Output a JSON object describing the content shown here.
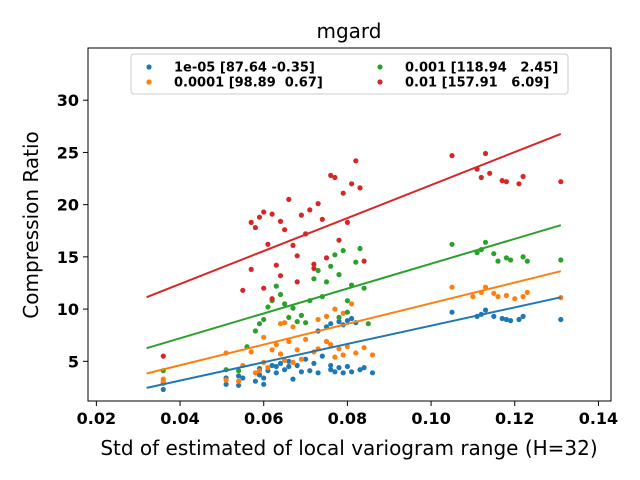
{
  "chart_data": {
    "type": "scatter",
    "title": "mgard",
    "xlabel": "Std of estimated of local variogram range (H=32)",
    "ylabel": "Compression Ratio",
    "xlim": [
      0.018,
      0.143
    ],
    "ylim": [
      1.2,
      35.0
    ],
    "xticks": [
      0.02,
      0.04,
      0.06,
      0.08,
      0.1,
      0.12,
      0.14
    ],
    "xtick_labels": [
      "0.02",
      "0.04",
      "0.06",
      "0.08",
      "0.10",
      "0.12",
      "0.14"
    ],
    "yticks": [
      5,
      10,
      15,
      20,
      25,
      30
    ],
    "ytick_labels": [
      "5",
      "10",
      "15",
      "20",
      "25",
      "30"
    ],
    "grid": false,
    "legend_position": "top-center",
    "legend_columns": 2,
    "fit_x_range": [
      0.032,
      0.131
    ],
    "series": [
      {
        "name": "1e-05 [87.64 -0.35]",
        "color": "#1f77b4",
        "fit": {
          "slope": 87.64,
          "intercept": -0.35
        },
        "points": [
          [
            0.036,
            2.3
          ],
          [
            0.036,
            2.9
          ],
          [
            0.051,
            2.8
          ],
          [
            0.051,
            3.4
          ],
          [
            0.054,
            2.7
          ],
          [
            0.054,
            3.6
          ],
          [
            0.055,
            3.4
          ],
          [
            0.058,
            3.1
          ],
          [
            0.059,
            3.7
          ],
          [
            0.059,
            4.3
          ],
          [
            0.06,
            2.8
          ],
          [
            0.06,
            3.4
          ],
          [
            0.061,
            4.1
          ],
          [
            0.062,
            4.6
          ],
          [
            0.063,
            3.9
          ],
          [
            0.063,
            4.5
          ],
          [
            0.064,
            4.8
          ],
          [
            0.065,
            4.2
          ],
          [
            0.066,
            4.5
          ],
          [
            0.066,
            5.0
          ],
          [
            0.067,
            3.3
          ],
          [
            0.068,
            4.6
          ],
          [
            0.069,
            4.0
          ],
          [
            0.07,
            5.2
          ],
          [
            0.071,
            4.1
          ],
          [
            0.072,
            4.8
          ],
          [
            0.073,
            3.9
          ],
          [
            0.074,
            5.5
          ],
          [
            0.076,
            4.2
          ],
          [
            0.076,
            4.6
          ],
          [
            0.077,
            4.0
          ],
          [
            0.078,
            4.4
          ],
          [
            0.079,
            3.9
          ],
          [
            0.08,
            4.5
          ],
          [
            0.081,
            4.0
          ],
          [
            0.083,
            4.2
          ],
          [
            0.084,
            4.4
          ],
          [
            0.086,
            3.9
          ],
          [
            0.105,
            9.7
          ],
          [
            0.111,
            9.3
          ],
          [
            0.112,
            9.5
          ],
          [
            0.113,
            9.9
          ],
          [
            0.115,
            9.3
          ],
          [
            0.117,
            9.1
          ],
          [
            0.118,
            9.0
          ],
          [
            0.119,
            8.9
          ],
          [
            0.121,
            9.0
          ],
          [
            0.122,
            9.3
          ],
          [
            0.131,
            9.0
          ],
          [
            0.073,
            7.9
          ],
          [
            0.075,
            8.3
          ],
          [
            0.076,
            8.6
          ],
          [
            0.078,
            8.8
          ],
          [
            0.079,
            8.5
          ],
          [
            0.08,
            8.9
          ],
          [
            0.081,
            9.1
          ],
          [
            0.082,
            8.7
          ]
        ]
      },
      {
        "name": "0.0001 [98.89  0.67]",
        "color": "#ff7f0e",
        "fit": {
          "slope": 98.89,
          "intercept": 0.67
        },
        "points": [
          [
            0.036,
            3.1
          ],
          [
            0.036,
            3.3
          ],
          [
            0.051,
            3.2
          ],
          [
            0.051,
            5.8
          ],
          [
            0.054,
            3.1
          ],
          [
            0.055,
            4.6
          ],
          [
            0.057,
            5.9
          ],
          [
            0.058,
            3.9
          ],
          [
            0.059,
            4.1
          ],
          [
            0.06,
            4.9
          ],
          [
            0.061,
            4.4
          ],
          [
            0.062,
            6.1
          ],
          [
            0.063,
            6.6
          ],
          [
            0.064,
            5.7
          ],
          [
            0.065,
            5.1
          ],
          [
            0.066,
            6.9
          ],
          [
            0.067,
            4.9
          ],
          [
            0.068,
            6.1
          ],
          [
            0.069,
            5.2
          ],
          [
            0.07,
            7.1
          ],
          [
            0.072,
            5.9
          ],
          [
            0.073,
            6.2
          ],
          [
            0.075,
            6.9
          ],
          [
            0.076,
            6.6
          ],
          [
            0.077,
            5.4
          ],
          [
            0.078,
            6.2
          ],
          [
            0.079,
            5.6
          ],
          [
            0.08,
            6.4
          ],
          [
            0.082,
            5.8
          ],
          [
            0.084,
            6.3
          ],
          [
            0.086,
            5.6
          ],
          [
            0.06,
            7.3
          ],
          [
            0.064,
            8.6
          ],
          [
            0.065,
            8.7
          ],
          [
            0.067,
            8.3
          ],
          [
            0.073,
            9.0
          ],
          [
            0.075,
            9.3
          ],
          [
            0.077,
            10.0
          ],
          [
            0.079,
            9.6
          ],
          [
            0.081,
            10.5
          ],
          [
            0.105,
            12.1
          ],
          [
            0.11,
            11.2
          ],
          [
            0.112,
            11.6
          ],
          [
            0.113,
            12.1
          ],
          [
            0.115,
            11.5
          ],
          [
            0.116,
            11.2
          ],
          [
            0.118,
            11.3
          ],
          [
            0.12,
            11.0
          ],
          [
            0.122,
            11.2
          ],
          [
            0.123,
            11.6
          ],
          [
            0.131,
            11.1
          ]
        ]
      },
      {
        "name": "0.001 [118.94   2.45]",
        "color": "#2ca02c",
        "fit": {
          "slope": 118.94,
          "intercept": 2.45
        },
        "points": [
          [
            0.036,
            4.1
          ],
          [
            0.051,
            4.2
          ],
          [
            0.054,
            4.1
          ],
          [
            0.056,
            6.4
          ],
          [
            0.058,
            7.9
          ],
          [
            0.059,
            8.6
          ],
          [
            0.06,
            9.0
          ],
          [
            0.061,
            10.2
          ],
          [
            0.062,
            10.8
          ],
          [
            0.063,
            12.2
          ],
          [
            0.064,
            11.4
          ],
          [
            0.065,
            10.5
          ],
          [
            0.066,
            9.2
          ],
          [
            0.067,
            10.1
          ],
          [
            0.068,
            8.8
          ],
          [
            0.069,
            9.4
          ],
          [
            0.07,
            8.7
          ],
          [
            0.071,
            10.8
          ],
          [
            0.072,
            12.9
          ],
          [
            0.073,
            13.7
          ],
          [
            0.074,
            11.2
          ],
          [
            0.075,
            12.6
          ],
          [
            0.076,
            14.1
          ],
          [
            0.077,
            15.2
          ],
          [
            0.078,
            13.3
          ],
          [
            0.079,
            15.6
          ],
          [
            0.08,
            10.8
          ],
          [
            0.081,
            12.3
          ],
          [
            0.082,
            14.5
          ],
          [
            0.083,
            15.8
          ],
          [
            0.084,
            12.0
          ],
          [
            0.085,
            8.6
          ],
          [
            0.078,
            9.2
          ],
          [
            0.08,
            9.7
          ],
          [
            0.105,
            16.2
          ],
          [
            0.111,
            15.4
          ],
          [
            0.112,
            15.7
          ],
          [
            0.113,
            16.4
          ],
          [
            0.115,
            15.3
          ],
          [
            0.116,
            14.6
          ],
          [
            0.118,
            14.9
          ],
          [
            0.119,
            14.7
          ],
          [
            0.122,
            15.0
          ],
          [
            0.123,
            14.6
          ],
          [
            0.131,
            14.7
          ]
        ]
      },
      {
        "name": "0.01 [157.91   6.09]",
        "color": "#d62728",
        "fit": {
          "slope": 157.91,
          "intercept": 6.09
        },
        "points": [
          [
            0.036,
            5.5
          ],
          [
            0.055,
            11.8
          ],
          [
            0.057,
            18.3
          ],
          [
            0.058,
            17.8
          ],
          [
            0.059,
            18.8
          ],
          [
            0.06,
            19.3
          ],
          [
            0.061,
            16.2
          ],
          [
            0.062,
            19.1
          ],
          [
            0.063,
            14.2
          ],
          [
            0.064,
            18.4
          ],
          [
            0.065,
            17.6
          ],
          [
            0.066,
            20.5
          ],
          [
            0.067,
            16.1
          ],
          [
            0.068,
            15.1
          ],
          [
            0.069,
            19.0
          ],
          [
            0.07,
            17.2
          ],
          [
            0.071,
            19.5
          ],
          [
            0.072,
            14.3
          ],
          [
            0.073,
            20.1
          ],
          [
            0.074,
            18.6
          ],
          [
            0.075,
            14.9
          ],
          [
            0.076,
            22.8
          ],
          [
            0.077,
            22.6
          ],
          [
            0.078,
            16.6
          ],
          [
            0.079,
            21.1
          ],
          [
            0.08,
            18.3
          ],
          [
            0.081,
            22.0
          ],
          [
            0.082,
            24.2
          ],
          [
            0.083,
            21.6
          ],
          [
            0.084,
            14.6
          ],
          [
            0.057,
            13.8
          ],
          [
            0.06,
            12.0
          ],
          [
            0.062,
            11.0
          ],
          [
            0.064,
            13.2
          ],
          [
            0.068,
            12.6
          ],
          [
            0.072,
            13.9
          ],
          [
            0.105,
            24.7
          ],
          [
            0.111,
            23.4
          ],
          [
            0.112,
            22.6
          ],
          [
            0.113,
            24.9
          ],
          [
            0.114,
            23.0
          ],
          [
            0.117,
            22.3
          ],
          [
            0.118,
            22.2
          ],
          [
            0.121,
            22.0
          ],
          [
            0.122,
            22.7
          ],
          [
            0.131,
            22.2
          ]
        ]
      }
    ]
  }
}
